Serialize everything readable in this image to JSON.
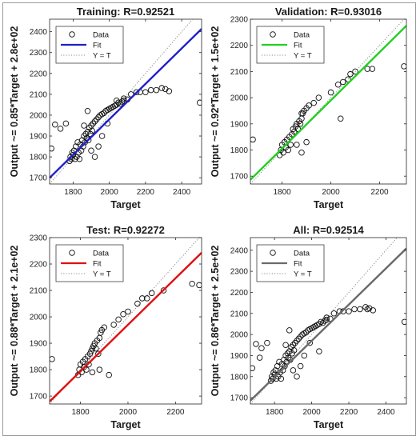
{
  "chart_data": [
    {
      "type": "scatter",
      "title": "Training: R=0.92521",
      "xlabel": "Target",
      "ylabel": "Output ~= 0.85*Target + 2.8e+02",
      "xlim": [
        1670,
        2510
      ],
      "ylim": [
        1670,
        2460
      ],
      "xticks": [
        1800,
        2000,
        2200,
        2400
      ],
      "yticks": [
        1700,
        1800,
        1900,
        2000,
        2100,
        2200,
        2300,
        2400
      ],
      "fit": {
        "slope": 0.85,
        "intercept": 280,
        "color": "#2020c8"
      },
      "legend": {
        "position": "top-left",
        "entries": [
          "Data",
          "Fit",
          "Y = T"
        ]
      },
      "series": [
        {
          "name": "Data",
          "points": [
            [
              1680,
              1840
            ],
            [
              1700,
              1955
            ],
            [
              1730,
              1935
            ],
            [
              1760,
              1960
            ],
            [
              1780,
              1780
            ],
            [
              1785,
              1800
            ],
            [
              1790,
              1790
            ],
            [
              1795,
              1820
            ],
            [
              1800,
              1810
            ],
            [
              1805,
              1830
            ],
            [
              1810,
              1790
            ],
            [
              1815,
              1850
            ],
            [
              1820,
              1800
            ],
            [
              1825,
              1870
            ],
            [
              1830,
              1820
            ],
            [
              1835,
              1790
            ],
            [
              1840,
              1860
            ],
            [
              1845,
              1830
            ],
            [
              1850,
              1880
            ],
            [
              1855,
              1850
            ],
            [
              1860,
              1900
            ],
            [
              1865,
              1870
            ],
            [
              1870,
              1910
            ],
            [
              1875,
              1890
            ],
            [
              1880,
              1920
            ],
            [
              1885,
              1880
            ],
            [
              1890,
              1940
            ],
            [
              1895,
              1910
            ],
            [
              1900,
              1950
            ],
            [
              1905,
              1925
            ],
            [
              1910,
              1960
            ],
            [
              1920,
              1970
            ],
            [
              1930,
              1980
            ],
            [
              1940,
              1990
            ],
            [
              1950,
              2000
            ],
            [
              1960,
              2005
            ],
            [
              1970,
              2010
            ],
            [
              1980,
              2020
            ],
            [
              1990,
              2025
            ],
            [
              2000,
              2030
            ],
            [
              2010,
              2035
            ],
            [
              2020,
              2040
            ],
            [
              2030,
              2045
            ],
            [
              2040,
              2050
            ],
            [
              2050,
              2060
            ],
            [
              2060,
              2055
            ],
            [
              2070,
              2065
            ],
            [
              2080,
              2070
            ],
            [
              2100,
              2075
            ],
            [
              2120,
              2100
            ],
            [
              2150,
              2110
            ],
            [
              2170,
              2110
            ],
            [
              2200,
              2110
            ],
            [
              2230,
              2120
            ],
            [
              2260,
              2120
            ],
            [
              2290,
              2130
            ],
            [
              2310,
              2125
            ],
            [
              2330,
              2115
            ],
            [
              2500,
              2060
            ],
            [
              1860,
              1950
            ],
            [
              1880,
              2020
            ],
            [
              1900,
              1830
            ],
            [
              1920,
              1800
            ],
            [
              1940,
              1850
            ],
            [
              1960,
              1900
            ],
            [
              1990,
              1960
            ],
            [
              2040,
              2070
            ],
            [
              2080,
              2080
            ]
          ]
        }
      ]
    },
    {
      "type": "scatter",
      "title": "Validation: R=0.93016",
      "xlabel": "Target",
      "ylabel": "Output ~= 0.92*Target + 1.5e+02",
      "xlim": [
        1670,
        2310
      ],
      "ylim": [
        1670,
        2300
      ],
      "xticks": [
        1800,
        2000,
        2200
      ],
      "yticks": [
        1700,
        1800,
        1900,
        2000,
        2100,
        2200,
        2300
      ],
      "fit": {
        "slope": 0.92,
        "intercept": 150,
        "color": "#20d020"
      },
      "legend": {
        "position": "top-left",
        "entries": [
          "Data",
          "Fit",
          "Y = T"
        ]
      },
      "series": [
        {
          "name": "Data",
          "points": [
            [
              1680,
              1840
            ],
            [
              1790,
              1780
            ],
            [
              1795,
              1800
            ],
            [
              1800,
              1820
            ],
            [
              1805,
              1790
            ],
            [
              1810,
              1830
            ],
            [
              1815,
              1810
            ],
            [
              1820,
              1840
            ],
            [
              1825,
              1800
            ],
            [
              1830,
              1850
            ],
            [
              1835,
              1820
            ],
            [
              1840,
              1860
            ],
            [
              1845,
              1880
            ],
            [
              1850,
              1870
            ],
            [
              1855,
              1890
            ],
            [
              1860,
              1900
            ],
            [
              1865,
              1880
            ],
            [
              1870,
              1910
            ],
            [
              1875,
              1900
            ],
            [
              1880,
              1920
            ],
            [
              1885,
              1940
            ],
            [
              1890,
              1950
            ],
            [
              1900,
              1960
            ],
            [
              1910,
              1970
            ],
            [
              1930,
              1980
            ],
            [
              1950,
              2000
            ],
            [
              1860,
              1820
            ],
            [
              1880,
              1790
            ],
            [
              2000,
              2020
            ],
            [
              2030,
              2050
            ],
            [
              2050,
              2060
            ],
            [
              2070,
              2070
            ],
            [
              2080,
              2090
            ],
            [
              2100,
              2100
            ],
            [
              2150,
              2110
            ],
            [
              2170,
              2110
            ],
            [
              2300,
              2120
            ],
            [
              2040,
              1920
            ],
            [
              1880,
              1940
            ],
            [
              1900,
              1830
            ]
          ]
        }
      ]
    },
    {
      "type": "scatter",
      "title": "Test: R=0.92272",
      "xlabel": "Target",
      "ylabel": "Output ~= 0.88*Target + 2.1e+02",
      "xlim": [
        1670,
        2310
      ],
      "ylim": [
        1670,
        2300
      ],
      "xticks": [
        1800,
        2000,
        2200
      ],
      "yticks": [
        1700,
        1800,
        1900,
        2000,
        2100,
        2200,
        2300
      ],
      "fit": {
        "slope": 0.88,
        "intercept": 210,
        "color": "#e01010"
      },
      "legend": {
        "position": "top-left",
        "entries": [
          "Data",
          "Fit",
          "Y = T"
        ]
      },
      "series": [
        {
          "name": "Data",
          "points": [
            [
              1680,
              1840
            ],
            [
              1790,
              1780
            ],
            [
              1795,
              1800
            ],
            [
              1800,
              1820
            ],
            [
              1805,
              1790
            ],
            [
              1810,
              1830
            ],
            [
              1815,
              1810
            ],
            [
              1820,
              1840
            ],
            [
              1825,
              1800
            ],
            [
              1830,
              1850
            ],
            [
              1835,
              1820
            ],
            [
              1840,
              1860
            ],
            [
              1845,
              1870
            ],
            [
              1850,
              1880
            ],
            [
              1855,
              1890
            ],
            [
              1860,
              1900
            ],
            [
              1865,
              1880
            ],
            [
              1870,
              1910
            ],
            [
              1875,
              1860
            ],
            [
              1880,
              1920
            ],
            [
              1885,
              1940
            ],
            [
              1890,
              1950
            ],
            [
              1900,
              1960
            ],
            [
              1920,
              1780
            ],
            [
              1940,
              1970
            ],
            [
              1960,
              1990
            ],
            [
              1980,
              2010
            ],
            [
              2000,
              2020
            ],
            [
              2040,
              2050
            ],
            [
              2060,
              2070
            ],
            [
              2080,
              2070
            ],
            [
              2100,
              2090
            ],
            [
              2150,
              2100
            ],
            [
              2270,
              2125
            ],
            [
              2300,
              2120
            ],
            [
              1850,
              1790
            ],
            [
              1880,
              1800
            ]
          ]
        }
      ]
    },
    {
      "type": "scatter",
      "title": "All: R=0.92514",
      "xlabel": "Target",
      "ylabel": "Output ~= 0.86*Target + 2.5e+02",
      "xlim": [
        1670,
        2510
      ],
      "ylim": [
        1670,
        2460
      ],
      "xticks": [
        1800,
        2000,
        2200,
        2400
      ],
      "yticks": [
        1700,
        1800,
        1900,
        2000,
        2100,
        2200,
        2300,
        2400
      ],
      "fit": {
        "slope": 0.86,
        "intercept": 250,
        "color": "#6a6a6a"
      },
      "legend": {
        "position": "top-left",
        "entries": [
          "Data",
          "Fit",
          "Y = T"
        ]
      },
      "series": [
        {
          "name": "Data",
          "points": [
            [
              1680,
              1840
            ],
            [
              1700,
              1955
            ],
            [
              1730,
              1935
            ],
            [
              1760,
              1960
            ],
            [
              1780,
              1780
            ],
            [
              1785,
              1800
            ],
            [
              1790,
              1790
            ],
            [
              1795,
              1820
            ],
            [
              1800,
              1810
            ],
            [
              1805,
              1830
            ],
            [
              1810,
              1790
            ],
            [
              1815,
              1850
            ],
            [
              1820,
              1800
            ],
            [
              1825,
              1870
            ],
            [
              1830,
              1820
            ],
            [
              1835,
              1790
            ],
            [
              1840,
              1860
            ],
            [
              1845,
              1830
            ],
            [
              1850,
              1880
            ],
            [
              1855,
              1850
            ],
            [
              1860,
              1900
            ],
            [
              1865,
              1870
            ],
            [
              1870,
              1910
            ],
            [
              1875,
              1890
            ],
            [
              1880,
              1920
            ],
            [
              1885,
              1880
            ],
            [
              1890,
              1940
            ],
            [
              1895,
              1910
            ],
            [
              1900,
              1950
            ],
            [
              1905,
              1925
            ],
            [
              1910,
              1960
            ],
            [
              1920,
              1970
            ],
            [
              1930,
              1980
            ],
            [
              1940,
              1990
            ],
            [
              1950,
              2000
            ],
            [
              1960,
              2005
            ],
            [
              1970,
              2010
            ],
            [
              1980,
              2020
            ],
            [
              1990,
              2025
            ],
            [
              2000,
              2030
            ],
            [
              2010,
              2035
            ],
            [
              2020,
              2040
            ],
            [
              2030,
              2045
            ],
            [
              2040,
              2050
            ],
            [
              2050,
              2060
            ],
            [
              2060,
              2055
            ],
            [
              2070,
              2065
            ],
            [
              2080,
              2070
            ],
            [
              2100,
              2075
            ],
            [
              2120,
              2100
            ],
            [
              2150,
              2110
            ],
            [
              2170,
              2110
            ],
            [
              2200,
              2110
            ],
            [
              2230,
              2120
            ],
            [
              2260,
              2120
            ],
            [
              2290,
              2130
            ],
            [
              2310,
              2125
            ],
            [
              2330,
              2115
            ],
            [
              2500,
              2060
            ],
            [
              1860,
              1950
            ],
            [
              1880,
              2020
            ],
            [
              1900,
              1830
            ],
            [
              1920,
              1800
            ],
            [
              1940,
              1850
            ],
            [
              1960,
              1900
            ],
            [
              1990,
              1960
            ],
            [
              2040,
              1920
            ],
            [
              2080,
              2080
            ],
            [
              1720,
              1890
            ],
            [
              2300,
              2120
            ]
          ]
        }
      ]
    }
  ]
}
